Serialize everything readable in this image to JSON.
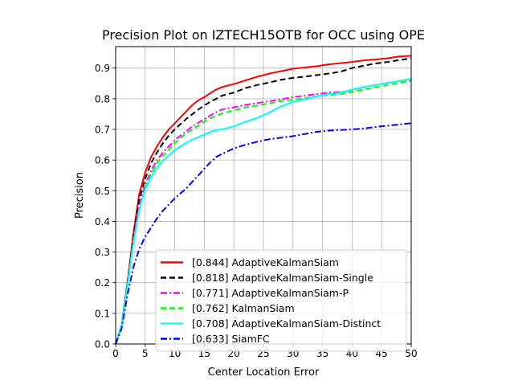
{
  "chart_data": {
    "type": "line",
    "title": "Precision Plot on IZTECH15OTB for OCC using OPE",
    "xlabel": "Center Location Error",
    "ylabel": "Precision",
    "xlim": [
      0,
      50
    ],
    "ylim": [
      0,
      0.97
    ],
    "xticks": [
      0,
      5,
      10,
      15,
      20,
      25,
      30,
      35,
      40,
      45,
      50
    ],
    "yticks": [
      0.0,
      0.1,
      0.2,
      0.3,
      0.4,
      0.5,
      0.6,
      0.7,
      0.8,
      0.9
    ],
    "grid": true,
    "legend_position": "lower-right",
    "series": [
      {
        "name": "[0.844] AdaptiveKalmanSiam",
        "color": "#ff0000",
        "dash": "solid",
        "x": [
          0,
          1,
          2,
          3,
          4,
          5,
          6,
          7,
          8,
          9,
          10,
          11,
          12,
          13,
          14,
          15,
          16,
          17,
          18,
          19,
          20,
          22,
          24,
          26,
          28,
          30,
          32,
          34,
          36,
          38,
          40,
          42,
          44,
          46,
          48,
          50
        ],
        "y": [
          0.0,
          0.06,
          0.2,
          0.36,
          0.49,
          0.56,
          0.61,
          0.645,
          0.675,
          0.7,
          0.72,
          0.74,
          0.76,
          0.78,
          0.795,
          0.805,
          0.818,
          0.83,
          0.838,
          0.843,
          0.848,
          0.86,
          0.872,
          0.882,
          0.89,
          0.898,
          0.902,
          0.906,
          0.912,
          0.916,
          0.92,
          0.925,
          0.928,
          0.932,
          0.938,
          0.94
        ]
      },
      {
        "name": "[0.818] AdaptiveKalmanSiam-Single",
        "color": "#000000",
        "dash": "dashed",
        "x": [
          0,
          1,
          2,
          3,
          4,
          5,
          6,
          7,
          8,
          9,
          10,
          11,
          12,
          13,
          14,
          15,
          16,
          17,
          18,
          20,
          22,
          24,
          26,
          28,
          30,
          32,
          34,
          36,
          38,
          40,
          42,
          44,
          46,
          48,
          50
        ],
        "y": [
          0.0,
          0.06,
          0.2,
          0.35,
          0.47,
          0.54,
          0.59,
          0.625,
          0.655,
          0.68,
          0.7,
          0.718,
          0.735,
          0.75,
          0.765,
          0.778,
          0.79,
          0.8,
          0.81,
          0.82,
          0.835,
          0.845,
          0.853,
          0.862,
          0.868,
          0.872,
          0.877,
          0.882,
          0.888,
          0.9,
          0.908,
          0.915,
          0.92,
          0.926,
          0.932
        ]
      },
      {
        "name": "[0.771] AdaptiveKalmanSiam-P",
        "color": "#ff00ff",
        "dash": "dashdot",
        "x": [
          0,
          1,
          2,
          3,
          4,
          5,
          6,
          7,
          8,
          9,
          10,
          11,
          12,
          13,
          14,
          15,
          16,
          17,
          18,
          20,
          22,
          24,
          26,
          28,
          30,
          32,
          34,
          36,
          38,
          40,
          42,
          44,
          46,
          48,
          50
        ],
        "y": [
          0.0,
          0.06,
          0.19,
          0.34,
          0.45,
          0.52,
          0.565,
          0.6,
          0.625,
          0.645,
          0.665,
          0.68,
          0.695,
          0.71,
          0.722,
          0.733,
          0.745,
          0.756,
          0.765,
          0.772,
          0.78,
          0.786,
          0.792,
          0.798,
          0.805,
          0.81,
          0.815,
          0.82,
          0.822,
          0.828,
          0.838,
          0.845,
          0.852,
          0.858,
          0.862
        ]
      },
      {
        "name": "[0.762] KalmanSiam",
        "color": "#00ff00",
        "dash": "dashed",
        "x": [
          0,
          1,
          2,
          3,
          4,
          5,
          6,
          7,
          8,
          9,
          10,
          11,
          12,
          13,
          14,
          15,
          16,
          17,
          18,
          20,
          22,
          24,
          26,
          28,
          30,
          32,
          34,
          36,
          38,
          40,
          42,
          44,
          46,
          48,
          50
        ],
        "y": [
          0.0,
          0.06,
          0.19,
          0.33,
          0.44,
          0.51,
          0.555,
          0.59,
          0.615,
          0.635,
          0.655,
          0.672,
          0.688,
          0.7,
          0.712,
          0.725,
          0.736,
          0.745,
          0.752,
          0.762,
          0.772,
          0.778,
          0.785,
          0.792,
          0.797,
          0.802,
          0.808,
          0.812,
          0.815,
          0.822,
          0.83,
          0.838,
          0.845,
          0.852,
          0.858
        ]
      },
      {
        "name": "[0.708] AdaptiveKalmanSiam-Distinct",
        "color": "#00ffff",
        "dash": "solid",
        "x": [
          0,
          1,
          2,
          3,
          4,
          5,
          6,
          7,
          8,
          9,
          10,
          11,
          12,
          13,
          14,
          15,
          16,
          17,
          18,
          20,
          22,
          24,
          26,
          28,
          30,
          32,
          34,
          36,
          38,
          40,
          42,
          44,
          46,
          48,
          50
        ],
        "y": [
          0.0,
          0.06,
          0.19,
          0.33,
          0.44,
          0.505,
          0.545,
          0.575,
          0.598,
          0.615,
          0.632,
          0.645,
          0.657,
          0.667,
          0.675,
          0.683,
          0.692,
          0.698,
          0.7,
          0.71,
          0.725,
          0.738,
          0.755,
          0.775,
          0.79,
          0.798,
          0.808,
          0.815,
          0.82,
          0.83,
          0.838,
          0.845,
          0.852,
          0.858,
          0.865
        ]
      },
      {
        "name": "[0.633] SiamFC",
        "color": "#0000ff",
        "dash": "dashdot",
        "x": [
          0,
          1,
          2,
          3,
          4,
          5,
          6,
          7,
          8,
          9,
          10,
          11,
          12,
          13,
          14,
          15,
          16,
          17,
          18,
          20,
          22,
          24,
          26,
          28,
          30,
          32,
          34,
          36,
          38,
          40,
          42,
          44,
          46,
          48,
          50
        ],
        "y": [
          0.0,
          0.05,
          0.16,
          0.25,
          0.31,
          0.35,
          0.38,
          0.41,
          0.435,
          0.455,
          0.475,
          0.492,
          0.508,
          0.53,
          0.55,
          0.572,
          0.592,
          0.61,
          0.62,
          0.638,
          0.65,
          0.66,
          0.668,
          0.673,
          0.678,
          0.685,
          0.692,
          0.696,
          0.698,
          0.7,
          0.703,
          0.708,
          0.712,
          0.716,
          0.72
        ]
      }
    ]
  }
}
